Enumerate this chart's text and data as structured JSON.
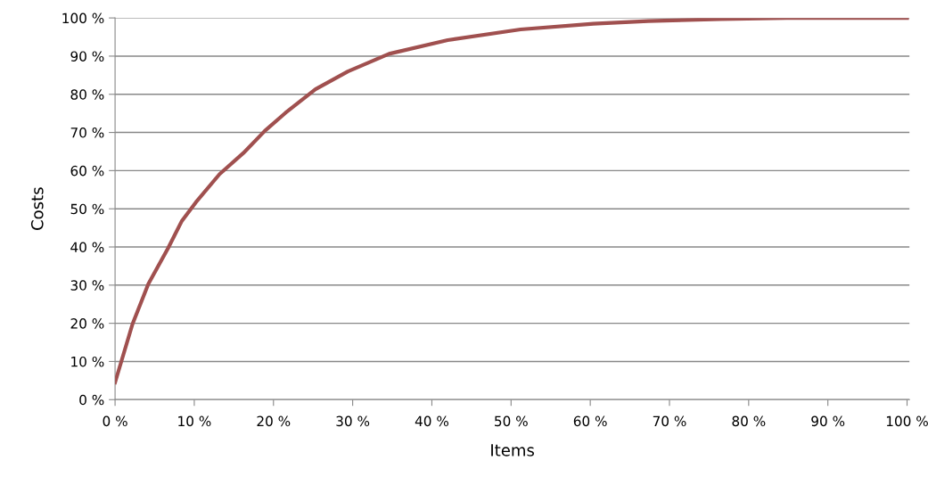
{
  "chart_data": {
    "type": "line",
    "xlabel": "Items",
    "ylabel": "Costs",
    "series": [
      {
        "color": "#a0504f",
        "x": [
          0,
          2.2,
          4.2,
          6.7,
          8.4,
          10.2,
          13.2,
          16.2,
          18.9,
          21.5,
          25.3,
          29.4,
          34.6,
          42.0,
          51.2,
          60.4,
          67.3,
          76.5,
          84.8,
          100
        ],
        "values": [
          4.5,
          19.8,
          30.3,
          39.7,
          46.7,
          51.7,
          59.1,
          64.6,
          70.4,
          75.1,
          81.3,
          86.0,
          90.6,
          94.2,
          97.0,
          98.5,
          99.2,
          99.7,
          100,
          100
        ]
      }
    ],
    "xlim": [
      0,
      100.3
    ],
    "ylim": [
      0,
      100
    ],
    "xticks": [
      {
        "value": 0,
        "label": "0 %"
      },
      {
        "value": 10,
        "label": "10 %"
      },
      {
        "value": 20,
        "label": "20 %"
      },
      {
        "value": 30,
        "label": "30 %"
      },
      {
        "value": 40,
        "label": "40 %"
      },
      {
        "value": 50,
        "label": "50 %"
      },
      {
        "value": 60,
        "label": "60 %"
      },
      {
        "value": 70,
        "label": "70 %"
      },
      {
        "value": 80,
        "label": "80 %"
      },
      {
        "value": 90,
        "label": "90 %"
      },
      {
        "value": 100,
        "label": "100 %"
      }
    ],
    "yticks": [
      {
        "value": 0,
        "label": "0 %"
      },
      {
        "value": 10,
        "label": "10 %"
      },
      {
        "value": 20,
        "label": "20 %"
      },
      {
        "value": 30,
        "label": "30 %"
      },
      {
        "value": 40,
        "label": "40 %"
      },
      {
        "value": 50,
        "label": "50 %"
      },
      {
        "value": 60,
        "label": "60 %"
      },
      {
        "value": 70,
        "label": "70 %"
      },
      {
        "value": 80,
        "label": "80 %"
      },
      {
        "value": 90,
        "label": "90 %"
      },
      {
        "value": 100,
        "label": "100 %"
      }
    ],
    "grid": "y",
    "legend": false,
    "marker": "none",
    "line_style": "solid"
  }
}
